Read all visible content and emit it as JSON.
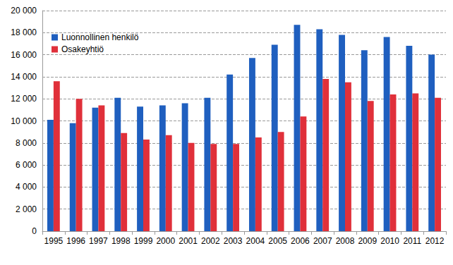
{
  "chart_data": {
    "type": "bar",
    "categories": [
      "1995",
      "1996",
      "1997",
      "1998",
      "1999",
      "2000",
      "2001",
      "2002",
      "2003",
      "2004",
      "2005",
      "2006",
      "2007",
      "2008",
      "2009",
      "2010",
      "2011",
      "2012"
    ],
    "series": [
      {
        "name": "Luonnollinen henkilö",
        "color": "#1f5fbf",
        "values": [
          10100,
          9800,
          11200,
          12100,
          11300,
          11400,
          11600,
          12100,
          14200,
          15700,
          16900,
          18700,
          18300,
          17800,
          16400,
          17600,
          16800,
          16000
        ]
      },
      {
        "name": "Osakeyhtiö",
        "color": "#e0303a",
        "values": [
          13600,
          12000,
          11400,
          8900,
          8300,
          8700,
          8000,
          7900,
          7900,
          8500,
          9000,
          10400,
          13800,
          13500,
          11800,
          12400,
          12500,
          12100
        ]
      }
    ],
    "ylim": [
      0,
      20000
    ],
    "yticks": [
      0,
      {
        "value": 2000,
        "label": "2 000"
      },
      {
        "value": 4000,
        "label": "4 000"
      },
      {
        "value": 6000,
        "label": "6 000"
      },
      {
        "value": 8000,
        "label": "8 000"
      },
      {
        "value": 10000,
        "label": "10 000"
      },
      {
        "value": 12000,
        "label": "12 000"
      },
      {
        "value": 14000,
        "label": "14 000"
      },
      {
        "value": 16000,
        "label": "16 000"
      },
      {
        "value": 18000,
        "label": "18 000"
      },
      {
        "value": 20000,
        "label": "20 000"
      }
    ],
    "grid": true,
    "legend": "top-left"
  }
}
